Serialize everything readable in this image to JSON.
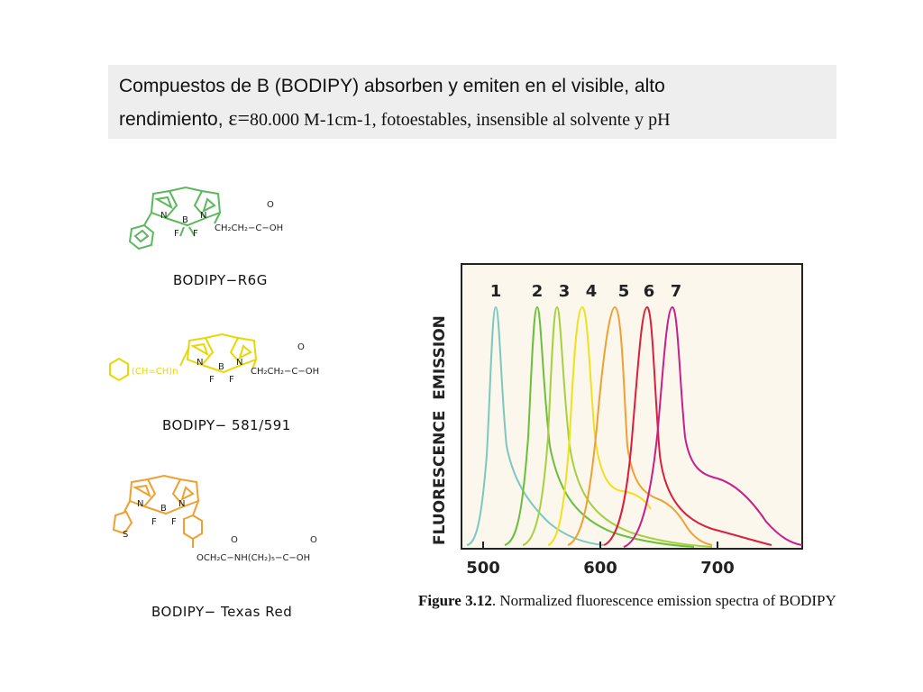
{
  "header": {
    "line1": "Compuestos de B (BODIPY) absorben y emiten en el visible, alto",
    "line2_sans": "rendimiento, ",
    "epsilon": "ε=",
    "line2_serif": "80.000 M-1cm-1, fotoestables, insensible al solvente y pH"
  },
  "structures": [
    {
      "name": "BODIPY−R6G",
      "color": "#5cb85c",
      "side_chain": "CH₂CH₂−C−OH"
    },
    {
      "name": "BODIPY− 581/591",
      "color": "#e8d800",
      "side_chain": "CH₂CH₂−C−OH",
      "linker": "(CH=CH)n"
    },
    {
      "name": "BODIPY− Texas  Red",
      "color": "#f0a030",
      "side_chain": "OCH₂C−NH(CH₂)₅−C−OH"
    }
  ],
  "figure": {
    "ylabel": "FLUORESCENCE  EMISSION",
    "x_ticks": [
      "500",
      "600",
      "700"
    ],
    "peak_labels": [
      "1",
      "2",
      "3",
      "4",
      "5",
      "6",
      "7"
    ],
    "curve_colors": [
      "#7cc8c0",
      "#6cbf3c",
      "#a6d040",
      "#f0e020",
      "#f0a030",
      "#d8203c",
      "#c8208a"
    ],
    "caption_label": "Figure 3.12",
    "caption_text": ". Normalized fluorescence emission spectra of BODIPY"
  }
}
